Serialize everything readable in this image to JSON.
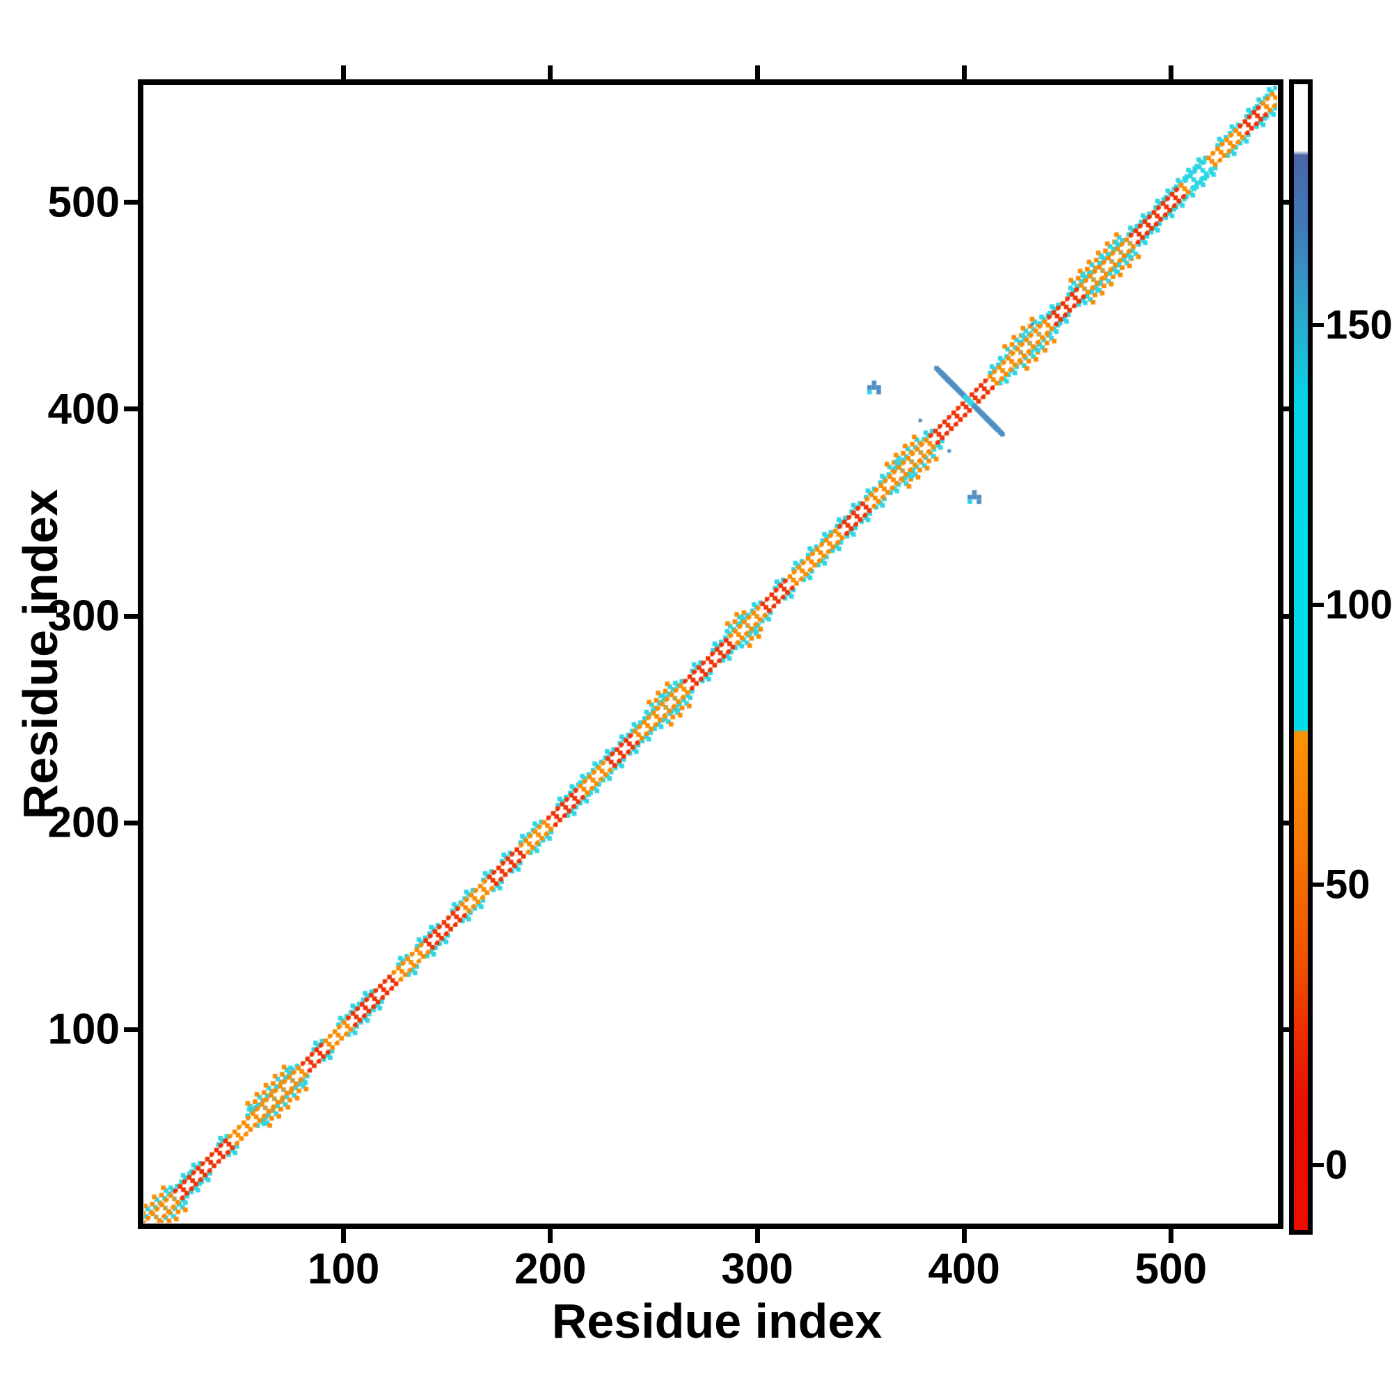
{
  "figure": {
    "background": "#ffffff",
    "frame_color": "#000000",
    "xlabel": "Residue index",
    "ylabel": "Residue index"
  },
  "chart_data": {
    "type": "heatmap",
    "title": "",
    "xlabel": "Residue index",
    "ylabel": "Residue index",
    "xlim": [
      3,
      554.5
    ],
    "ylim": [
      6.5,
      557.5
    ],
    "grid": false,
    "x_ticks": [
      100,
      200,
      300,
      400,
      500
    ],
    "y_ticks": [
      100,
      200,
      300,
      400,
      500
    ],
    "x_tick_labels": [
      "100",
      "200",
      "300",
      "400",
      "500"
    ],
    "y_tick_labels": [
      "100",
      "200",
      "300",
      "400",
      "500"
    ],
    "colorbar": {
      "position": "right",
      "ticks": [
        0,
        50,
        100,
        150
      ],
      "tick_labels": [
        "0",
        "50",
        "100",
        "150"
      ],
      "vmin": -11.6,
      "vmax": 193,
      "gradient_stops": [
        [
          0.0,
          "#ffffff"
        ],
        [
          0.058,
          "#ffffff"
        ],
        [
          0.062,
          "#4a66aa"
        ],
        [
          0.13,
          "#3e7db9"
        ],
        [
          0.2,
          "#2da7cd"
        ],
        [
          0.28,
          "#05d5e7"
        ],
        [
          0.4,
          "#00dcec"
        ],
        [
          0.563,
          "#00dcec"
        ],
        [
          0.566,
          "#fb9200"
        ],
        [
          0.67,
          "#f57600"
        ],
        [
          0.77,
          "#ef5000"
        ],
        [
          0.84,
          "#ea2600"
        ],
        [
          0.89,
          "#e81000"
        ],
        [
          1.0,
          "#ed0d00"
        ]
      ]
    },
    "palette": {
      "red": "#ef3205",
      "orange": "#fb8b00",
      "cyan": "#2ed5e3",
      "khaki": "#c2a04c",
      "blue": "#4f8ec1",
      "white": "#ffffff"
    },
    "diagonal": {
      "from": 5,
      "to": 552,
      "base_segments": [
        [
          5,
          20,
          "orange"
        ],
        [
          20,
          46,
          "red"
        ],
        [
          46,
          59,
          "orange"
        ],
        [
          59,
          80,
          "orange"
        ],
        [
          80,
          92,
          "red"
        ],
        [
          92,
          104,
          "orange"
        ],
        [
          104,
          126,
          "red"
        ],
        [
          126,
          140,
          "orange"
        ],
        [
          140,
          158,
          "red"
        ],
        [
          158,
          170,
          "orange"
        ],
        [
          170,
          186,
          "red"
        ],
        [
          186,
          200,
          "orange"
        ],
        [
          200,
          216,
          "red"
        ],
        [
          216,
          228,
          "orange"
        ],
        [
          228,
          242,
          "red"
        ],
        [
          242,
          252,
          "orange"
        ],
        [
          252,
          266,
          "orange"
        ],
        [
          266,
          288,
          "red"
        ],
        [
          288,
          302,
          "orange"
        ],
        [
          302,
          316,
          "red"
        ],
        [
          316,
          340,
          "orange"
        ],
        [
          340,
          354,
          "red"
        ],
        [
          354,
          368,
          "orange"
        ],
        [
          368,
          384,
          "orange"
        ],
        [
          384,
          414,
          "red"
        ],
        [
          414,
          426,
          "orange"
        ],
        [
          426,
          442,
          "orange"
        ],
        [
          442,
          458,
          "red"
        ],
        [
          458,
          482,
          "orange"
        ],
        [
          482,
          506,
          "red"
        ],
        [
          506,
          520,
          "orange"
        ],
        [
          520,
          534,
          "orange"
        ],
        [
          534,
          544,
          "red"
        ],
        [
          544,
          552,
          "orange"
        ]
      ],
      "tan_segments": [
        [
          5,
          20
        ],
        [
          59,
          78
        ],
        [
          253,
          262
        ],
        [
          291,
          299
        ],
        [
          368,
          383
        ],
        [
          425,
          440
        ],
        [
          457,
          481
        ]
      ],
      "cyan_segments": [
        [
          508,
          518
        ]
      ],
      "cyan_beads": [
        20,
        26,
        31,
        44,
        58,
        78,
        90,
        102,
        108,
        114,
        131,
        140,
        146,
        157,
        163,
        172,
        181,
        190,
        196,
        208,
        214,
        219,
        225,
        231,
        238,
        244,
        250,
        258,
        264,
        273,
        283,
        289,
        296,
        302,
        313,
        322,
        329,
        336,
        343,
        350,
        357,
        364,
        371,
        385,
        417,
        421,
        432,
        441,
        446,
        455,
        461,
        470,
        477,
        484,
        490,
        497,
        502,
        507,
        512,
        517,
        527,
        533,
        541,
        546,
        551
      ]
    },
    "cross_feature": {
      "center_x": 402.6,
      "center_y": 403.8,
      "half_length": 14.3,
      "color_key": "blue",
      "core_color_key": "cyan"
    },
    "blobs": [
      {
        "x": 356.5,
        "y": 410.5
      },
      {
        "x": 405.0,
        "y": 357.5
      }
    ],
    "dots": [
      {
        "x": 378.8,
        "y": 394.5
      },
      {
        "x": 392.8,
        "y": 379.8
      },
      {
        "x": 433.0,
        "y": 441.0
      }
    ]
  }
}
